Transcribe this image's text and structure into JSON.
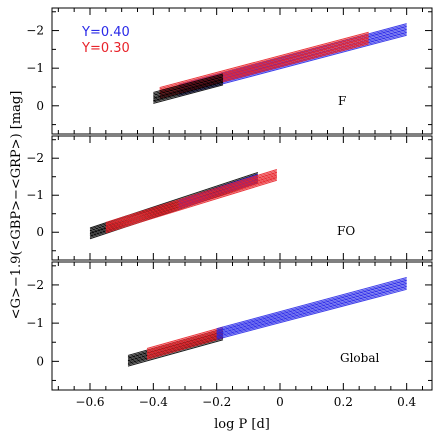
{
  "colors": {
    "black": "#000000",
    "blue": "#2a2ae8",
    "red": "#e8232a",
    "purple": "#6a2a9a"
  },
  "chart_data": [
    {
      "type": "line",
      "panel_label": "F",
      "xlim": [
        -0.72,
        0.48
      ],
      "ylim": [
        0.75,
        -2.6
      ],
      "reversed_y": true,
      "legend": [
        {
          "name": "Y=0.40",
          "color": "#2a2ae8"
        },
        {
          "name": "Y=0.30",
          "color": "#e8232a"
        }
      ],
      "series": [
        {
          "name": "Y=0.40",
          "color": "#2a2ae8",
          "x": [
            -0.32,
            0.4
          ],
          "y_lines": [
            [
              -0.52,
              -2.15
            ],
            [
              -0.45,
              -2.07
            ],
            [
              -0.38,
              -1.99
            ],
            [
              -0.31,
              -1.91
            ]
          ]
        },
        {
          "name": "Y=0.30",
          "color": "#e8232a",
          "x": [
            -0.38,
            0.28
          ],
          "y_lines": [
            [
              -0.45,
              -1.92
            ],
            [
              -0.38,
              -1.84
            ],
            [
              -0.31,
              -1.76
            ],
            [
              -0.24,
              -1.68
            ]
          ]
        },
        {
          "name": "",
          "color": "#000000",
          "x": [
            -0.4,
            -0.18
          ],
          "y_lines": [
            [
              -0.32,
              -0.81
            ],
            [
              -0.24,
              -0.73
            ],
            [
              -0.17,
              -0.66
            ],
            [
              -0.1,
              -0.59
            ]
          ]
        }
      ],
      "yticks": [
        -2,
        -1,
        0
      ],
      "ytick_labels": [
        "−2",
        "−1",
        "0"
      ]
    },
    {
      "type": "line",
      "panel_label": "FO",
      "xlim": [
        -0.72,
        0.48
      ],
      "ylim": [
        0.75,
        -2.6
      ],
      "reversed_y": true,
      "series": [
        {
          "name": "",
          "color": "#000000",
          "x": [
            -0.6,
            -0.07
          ],
          "y_lines": [
            [
              -0.08,
              -1.58
            ],
            [
              0.0,
              -1.5
            ],
            [
              0.07,
              -1.43
            ],
            [
              0.14,
              -1.36
            ]
          ]
        },
        {
          "name": "Y=0.40",
          "color": "#2a2ae8",
          "x": [
            -0.32,
            -0.07
          ],
          "y_lines": [
            [
              -0.82,
              -1.53
            ],
            [
              -0.74,
              -1.45
            ],
            [
              -0.67,
              -1.38
            ]
          ]
        },
        {
          "name": "Y=0.30",
          "color": "#e8232a",
          "x": [
            -0.55,
            -0.01
          ],
          "y_lines": [
            [
              -0.23,
              -1.66
            ],
            [
              -0.16,
              -1.58
            ],
            [
              -0.09,
              -1.51
            ],
            [
              -0.02,
              -1.44
            ]
          ]
        }
      ],
      "yticks": [
        -2,
        -1,
        0
      ],
      "ytick_labels": [
        "−2",
        "−1",
        "0"
      ]
    },
    {
      "type": "line",
      "panel_label": "Global",
      "xlim": [
        -0.72,
        0.48
      ],
      "ylim": [
        0.75,
        -2.6
      ],
      "reversed_y": true,
      "series": [
        {
          "name": "",
          "color": "#000000",
          "x": [
            -0.48,
            -0.18
          ],
          "y_lines": [
            [
              -0.12,
              -0.82
            ],
            [
              -0.05,
              -0.74
            ],
            [
              0.02,
              -0.67
            ],
            [
              0.09,
              -0.6
            ]
          ]
        },
        {
          "name": "Y=0.30",
          "color": "#e8232a",
          "x": [
            -0.42,
            -0.18
          ],
          "y_lines": [
            [
              -0.3,
              -0.86
            ],
            [
              -0.23,
              -0.79
            ],
            [
              -0.16,
              -0.72
            ],
            [
              -0.09,
              -0.65
            ]
          ]
        },
        {
          "name": "Y=0.40",
          "color": "#2a2ae8",
          "x": [
            -0.2,
            0.4
          ],
          "y_lines": [
            [
              -0.82,
              -2.16
            ],
            [
              -0.75,
              -2.08
            ],
            [
              -0.68,
              -2.0
            ],
            [
              -0.61,
              -1.92
            ]
          ]
        }
      ],
      "yticks": [
        -2,
        -1,
        0
      ],
      "ytick_labels": [
        "−2",
        "−1",
        "0"
      ]
    }
  ],
  "xaxis": {
    "ticks": [
      -0.6,
      -0.4,
      -0.2,
      0,
      0.2,
      0.4
    ],
    "tick_labels": [
      "−0.6",
      "−0.4",
      "−0.2",
      "0",
      "0.2",
      "0.4"
    ],
    "label": "log P [d]"
  },
  "yaxis": {
    "label": "<G>−1.9(<GBP>−<GRP>) [mag]"
  }
}
